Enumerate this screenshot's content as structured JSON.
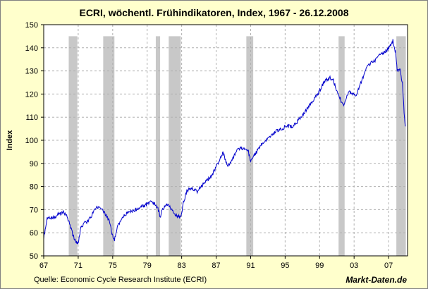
{
  "chart_data": {
    "type": "line",
    "title": "ECRI, wöchentl. Frühindikatoren, Index, 1967 - 26.12.2008",
    "ylabel": "Index",
    "xlabel": "",
    "ylim": [
      50,
      150
    ],
    "xlim": [
      1967,
      2009.2
    ],
    "y_ticks": [
      50,
      60,
      70,
      80,
      90,
      100,
      110,
      120,
      130,
      140,
      150
    ],
    "x_ticks": [
      {
        "value": 1967,
        "label": "67"
      },
      {
        "value": 1971,
        "label": "71"
      },
      {
        "value": 1975,
        "label": "75"
      },
      {
        "value": 1979,
        "label": "79"
      },
      {
        "value": 1983,
        "label": "83"
      },
      {
        "value": 1987,
        "label": "87"
      },
      {
        "value": 1991,
        "label": "91"
      },
      {
        "value": 1995,
        "label": "95"
      },
      {
        "value": 1999,
        "label": "99"
      },
      {
        "value": 2003,
        "label": "03"
      },
      {
        "value": 2007,
        "label": "07"
      }
    ],
    "grid": true,
    "line_color": "#0000cc",
    "recession_color": "#c8c8c8",
    "recessions": [
      [
        1969.9,
        1970.9
      ],
      [
        1973.9,
        1975.2
      ],
      [
        1980.0,
        1980.5
      ],
      [
        1981.5,
        1982.9
      ],
      [
        1990.5,
        1991.3
      ],
      [
        2001.2,
        2001.9
      ],
      [
        2007.9,
        2009.0
      ]
    ],
    "series": [
      {
        "x": [
          1967.0,
          1967.4,
          1967.8,
          1968.3,
          1968.8,
          1969.2,
          1969.6,
          1970.0,
          1970.3,
          1970.7,
          1971.0,
          1971.3,
          1971.7,
          1972.1,
          1972.5,
          1972.9,
          1973.3,
          1973.6,
          1974.0,
          1974.3,
          1974.6,
          1974.9,
          1975.2,
          1975.6,
          1976.0,
          1976.5,
          1977.0,
          1977.6,
          1978.2,
          1978.8,
          1979.3,
          1979.8,
          1980.2,
          1980.5,
          1980.8,
          1981.1,
          1981.4,
          1981.8,
          1982.2,
          1982.6,
          1982.9,
          1983.2,
          1983.6,
          1984.0,
          1984.4,
          1984.8,
          1985.3,
          1985.8,
          1986.3,
          1986.8,
          1987.3,
          1987.8,
          1988.3,
          1988.8,
          1989.3,
          1989.8,
          1990.3,
          1990.7,
          1990.95,
          1991.3,
          1991.7,
          1992.2,
          1992.8,
          1993.4,
          1994.0,
          1994.6,
          1995.2,
          1995.8,
          1996.4,
          1997.0,
          1997.6,
          1998.2,
          1998.8,
          1999.2,
          1999.7,
          2000.2,
          2000.6,
          2001.0,
          2001.4,
          2001.7,
          2002.0,
          2002.4,
          2002.8,
          2003.2,
          2003.6,
          2004.0,
          2004.4,
          2004.8,
          2005.2,
          2005.6,
          2006.0,
          2006.4,
          2006.8,
          2007.2,
          2007.5,
          2007.8,
          2008.0,
          2008.3,
          2008.6,
          2008.8,
          2008.95
        ],
        "y": [
          58,
          66,
          66.5,
          67,
          68,
          69,
          68,
          64,
          60,
          56,
          55,
          62,
          64,
          65,
          67,
          70,
          71,
          70,
          69,
          67,
          65,
          60,
          57,
          63,
          66,
          68,
          69,
          70,
          71,
          72,
          73,
          73,
          71,
          67,
          70,
          72,
          72,
          70,
          68,
          67,
          67,
          73,
          78,
          79,
          79,
          78,
          80,
          82,
          84,
          87,
          91,
          95,
          89,
          91,
          95,
          97,
          96,
          96,
          91,
          93,
          95,
          98,
          100,
          102,
          104,
          105,
          106,
          106,
          108,
          111,
          114,
          117,
          120,
          123,
          126,
          127,
          126,
          121,
          118,
          115,
          117,
          121,
          120,
          119,
          123,
          127,
          131,
          133,
          134,
          135,
          137,
          138,
          139,
          141,
          143,
          138,
          130,
          131,
          125,
          112,
          106
        ]
      }
    ]
  },
  "footer": {
    "source": "Quelle: Economic Cycle Research Institute (ECRI)",
    "brand": "Markt-Daten.de"
  }
}
